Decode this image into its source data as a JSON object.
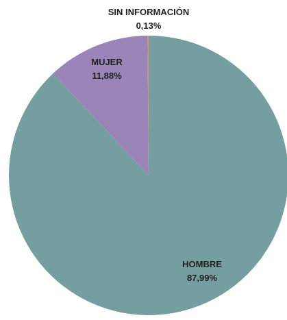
{
  "chart_data": {
    "type": "pie",
    "slices": [
      {
        "label": "HOMBRE",
        "value": 87.99,
        "value_label": "87,99%",
        "color": "#749e9f"
      },
      {
        "label": "MUJER",
        "value": 11.88,
        "value_label": "11,88%",
        "color": "#9a84b8"
      },
      {
        "label": "SIN INFORMACIÓN",
        "value": 0.13,
        "value_label": "0,13%",
        "color": "#e28b5d"
      }
    ],
    "start_angle_deg": 0,
    "direction": "clockwise"
  }
}
